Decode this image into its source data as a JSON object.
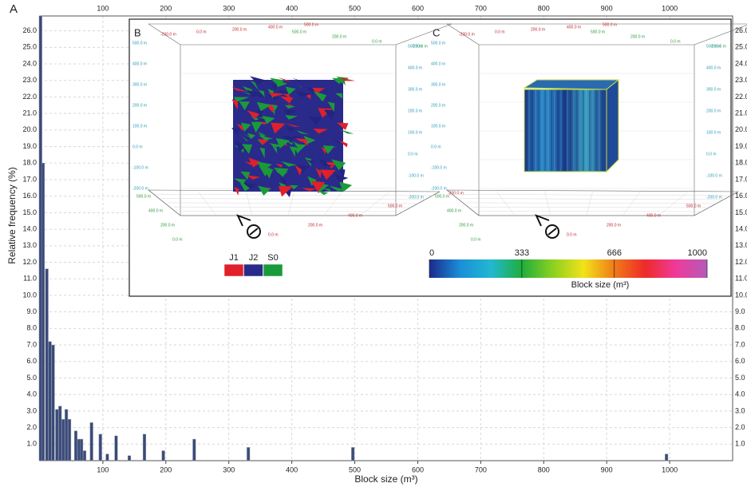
{
  "chart_data": {
    "type": "bar",
    "panel_label": "A",
    "xlabel": "Block size (m³)",
    "ylabel": "Relative frequency (%)",
    "x": [
      1,
      5,
      11,
      16,
      21,
      27,
      32,
      37,
      42,
      47,
      57,
      62,
      66,
      71,
      82,
      96,
      107,
      121,
      142,
      166,
      196,
      245,
      331,
      497,
      995
    ],
    "values": [
      26.9,
      18.0,
      11.6,
      7.2,
      7.0,
      3.1,
      3.3,
      2.5,
      3.1,
      2.5,
      1.8,
      1.3,
      1.3,
      0.6,
      2.3,
      1.6,
      0.4,
      1.5,
      0.3,
      1.6,
      0.6,
      1.3,
      0.8,
      0.8,
      0.4
    ],
    "color": "#3a4a78",
    "xlim": [
      0,
      1100
    ],
    "ylim": [
      0,
      26.9
    ],
    "xticks": [
      100,
      200,
      300,
      400,
      500,
      600,
      700,
      800,
      900,
      1000
    ],
    "yticks": [
      {
        "value": 1,
        "label": "1.0"
      },
      {
        "value": 2,
        "label": "2.0"
      },
      {
        "value": 3,
        "label": "3.0"
      },
      {
        "value": 4,
        "label": "4.0"
      },
      {
        "value": 5,
        "label": "5.0"
      },
      {
        "value": 6,
        "label": "6.0"
      },
      {
        "value": 7,
        "label": "7.0"
      },
      {
        "value": 8,
        "label": "8.0"
      },
      {
        "value": 9,
        "label": "9.0"
      },
      {
        "value": 10,
        "label": "10.0"
      },
      {
        "value": 11,
        "label": "11.0"
      },
      {
        "value": 12,
        "label": "12.0"
      },
      {
        "value": 13,
        "label": "13.0"
      },
      {
        "value": 14,
        "label": "14.0"
      },
      {
        "value": 15,
        "label": "15.0"
      },
      {
        "value": 16,
        "label": "16.0"
      },
      {
        "value": 17,
        "label": "17.0"
      },
      {
        "value": 18,
        "label": "18.0"
      },
      {
        "value": 19,
        "label": "19.0"
      },
      {
        "value": 20,
        "label": "20.0"
      },
      {
        "value": 21,
        "label": "21.0"
      },
      {
        "value": 22,
        "label": "22.0"
      },
      {
        "value": 23,
        "label": "23.0"
      },
      {
        "value": 24,
        "label": "24.0"
      },
      {
        "value": 25,
        "label": "25.0"
      },
      {
        "value": 26,
        "label": "26.0"
      }
    ],
    "grid": true,
    "insets": {
      "panels": [
        {
          "label": "B",
          "top_red": [
            "-200.0 m",
            "0.0 m",
            "200.0 m",
            "400.0 m",
            "500.0 m"
          ],
          "top_green": [
            "500.0 m",
            "200.0 m",
            "0.0 m",
            "-200.0 m"
          ],
          "left_cyan": [
            "500.0 m",
            "400.0 m",
            "300.0 m",
            "200.0 m",
            "100.0 m",
            "0.0 m",
            "-100.0 m",
            "-200.0 m"
          ],
          "right_cyan": [
            "500.0 m",
            "400.0 m",
            "300.0 m",
            "200.0 m",
            "100.0 m",
            "0.0 m",
            "-100.0 m",
            "-200.0 m"
          ],
          "bottom_green": [
            "500.0 m",
            "400.0 m",
            "200.0 m",
            "0.0 m"
          ],
          "bottom_red": [
            "0.0 m",
            "200.0 m",
            "400.0 m",
            "500.0 m",
            "-200.0 m"
          ]
        },
        {
          "label": "C",
          "top_red": [
            "-200.0 m",
            "0.0 m",
            "200.0 m",
            "400.0 m",
            "500.0 m"
          ],
          "top_green": [
            "500.0 m",
            "200.0 m",
            "0.0 m",
            "-200.0 m"
          ],
          "left_cyan": [
            "500.0 m",
            "400.0 m",
            "300.0 m",
            "200.0 m",
            "100.0 m",
            "0.0 m",
            "-100.0 m",
            "-200.0 m"
          ],
          "right_cyan": [
            "500.0 m",
            "400.0 m",
            "300.0 m",
            "200.0 m",
            "100.0 m",
            "0.0 m",
            "-100.0 m",
            "-200.0 m"
          ],
          "bottom_green": [
            "500.0 m",
            "400.0 m",
            "200.0 m",
            "0.0 m"
          ],
          "bottom_red": [
            "0.0 m",
            "200.0 m",
            "400.0 m",
            "500.0 m",
            "-200.0 m"
          ]
        }
      ],
      "legend": [
        {
          "name": "J1",
          "color": "#e0202a"
        },
        {
          "name": "J2",
          "color": "#2a2a8a"
        },
        {
          "name": "S0",
          "color": "#1a9a3a"
        }
      ],
      "colorbar": {
        "label": "Block size (m³)",
        "clim": [
          0,
          1000
        ],
        "ticks": [
          0,
          333,
          666,
          1000
        ],
        "colors": [
          "#1c2a8c",
          "#1a8fd8",
          "#22b8d0",
          "#1fae3c",
          "#8cd020",
          "#f2e21a",
          "#f07a18",
          "#ee2a2a",
          "#f03a9a",
          "#b45ab8"
        ]
      }
    }
  }
}
